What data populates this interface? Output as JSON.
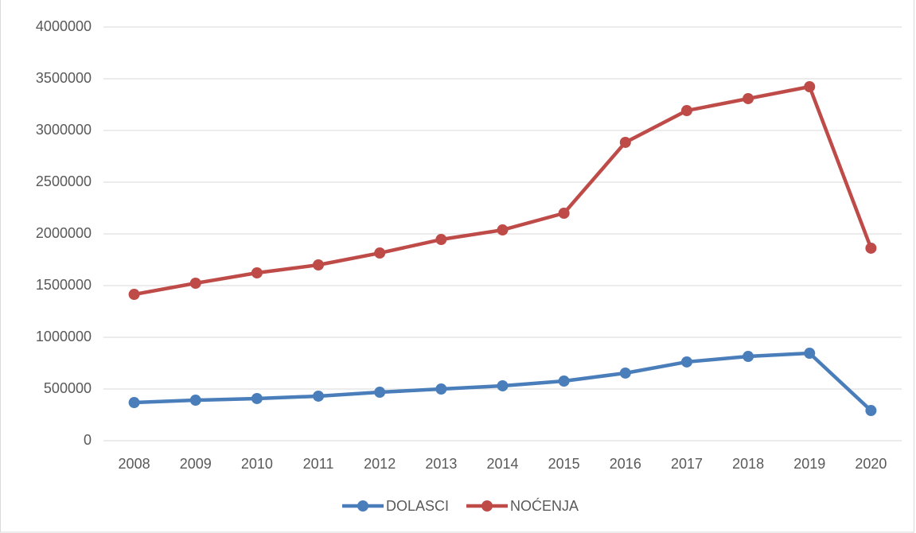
{
  "chart_data": {
    "type": "line",
    "categories": [
      "2008",
      "2009",
      "2010",
      "2011",
      "2012",
      "2013",
      "2014",
      "2015",
      "2016",
      "2017",
      "2018",
      "2019",
      "2020"
    ],
    "series": [
      {
        "name": "DOLASCI",
        "color": "#4a7ebb",
        "values": [
          369000,
          392000,
          408000,
          431000,
          469000,
          500000,
          531000,
          577000,
          654000,
          762000,
          815000,
          846000,
          292000
        ]
      },
      {
        "name": "NOĆENJA",
        "color": "#be4b48",
        "values": [
          1415000,
          1523000,
          1623000,
          1700000,
          1815000,
          1946000,
          2038000,
          2200000,
          2885000,
          3192000,
          3308000,
          3423000,
          1862000
        ]
      }
    ],
    "ylim": [
      0,
      4000000
    ],
    "yticks": [
      0,
      500000,
      1000000,
      1500000,
      2000000,
      2500000,
      3000000,
      3500000,
      4000000
    ],
    "grid": true,
    "legend": "bottom"
  }
}
